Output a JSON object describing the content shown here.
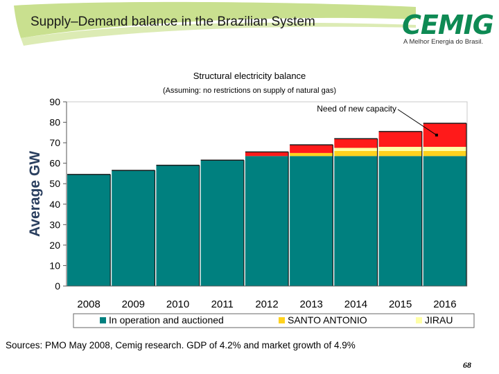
{
  "slide": {
    "title": "Supply–Demand balance in the Brazilian System",
    "sources": "Sources: PMO May 2008, Cemig research. GDP of 4.2% and market growth of 4.9%",
    "page_number": "68"
  },
  "logo": {
    "text": "CEMIG",
    "tagline": "A Melhor Energia do Brasil."
  },
  "colors": {
    "in_operation": "#00807f",
    "santo_antonio": "#ffd21e",
    "jirau": "#ffffa6",
    "new_capacity": "#ff1a1a",
    "axis_label": "#2a3f5f",
    "banner_green": "#c9e08f"
  },
  "chart_data": {
    "type": "bar",
    "title": "Structural electricity balance",
    "subtitle": "(Assuming: no restrictions on supply of natural gas)",
    "ylabel": "Average GW",
    "xlabel": "",
    "ylim": [
      0,
      90
    ],
    "yticks": [
      0,
      10,
      20,
      30,
      40,
      50,
      60,
      70,
      80,
      90
    ],
    "categories": [
      "2008",
      "2009",
      "2010",
      "2011",
      "2012",
      "2013",
      "2014",
      "2015",
      "2016"
    ],
    "stacked": true,
    "series": [
      {
        "name": "In operation and auctioned",
        "color_key": "in_operation",
        "values": [
          54.5,
          56.5,
          59,
          61.5,
          63.5,
          63.5,
          63.5,
          63.5,
          63.5
        ]
      },
      {
        "name": "SANTO ANTONIO",
        "color_key": "santo_antonio",
        "values": [
          0,
          0,
          0,
          0,
          0,
          1.5,
          2.5,
          2.5,
          2.5
        ]
      },
      {
        "name": "JIRAU",
        "color_key": "jirau",
        "values": [
          0,
          0,
          0,
          0,
          0,
          0,
          1.5,
          2,
          2
        ]
      },
      {
        "name": "Need of new capacity",
        "color_key": "new_capacity",
        "values": [
          0,
          0,
          0,
          0,
          2,
          4,
          4.5,
          7.5,
          11.5
        ]
      }
    ],
    "legend_entries": [
      "In operation and auctioned",
      "SANTO ANTONIO",
      "JIRAU"
    ],
    "legend_position": "bottom",
    "annotation": {
      "text": "Need of new capacity",
      "target_category": "2016"
    },
    "grid": false
  }
}
